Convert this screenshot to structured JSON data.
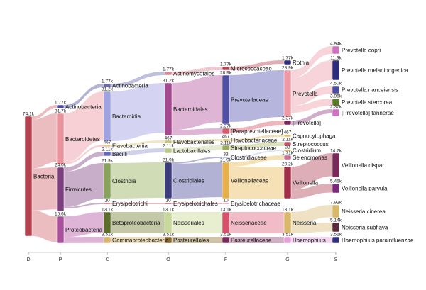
{
  "chart_data": {
    "type": "sankey",
    "levels": [
      "D",
      "P",
      "C",
      "O",
      "F",
      "G",
      "S"
    ],
    "nodes": [
      {
        "id": "bacteria",
        "label": "Bacteria",
        "value": "74.1k",
        "level": 0,
        "color": "#b5414e"
      },
      {
        "id": "actinobacteria_p",
        "label": "Actinobacteria",
        "value": "1.77k",
        "level": 1,
        "color": "#4a4a9a"
      },
      {
        "id": "bacteroidetes",
        "label": "Bacteroidetes",
        "value": "31.7k",
        "level": 1,
        "color": "#e8939b"
      },
      {
        "id": "firmicutes",
        "label": "Firmicutes",
        "value": "24.0k",
        "level": 1,
        "color": "#7b3f7e"
      },
      {
        "id": "proteobacteria",
        "label": "Proteobacteria",
        "value": "16.6k",
        "level": 1,
        "color": "#a8509a"
      },
      {
        "id": "actinobacteria_c",
        "label": "Actinobacteria",
        "value": "1.77k",
        "level": 2,
        "color": "#6a6aa8"
      },
      {
        "id": "bacteroidia",
        "label": "Bacteroidia",
        "value": "31.2k",
        "level": 2,
        "color": "#9fa3e0"
      },
      {
        "id": "flavobacteriia",
        "label": "Flavobacteriia",
        "value": "467",
        "level": 2,
        "color": "#e6c98a"
      },
      {
        "id": "bacilli",
        "label": "Bacilli",
        "value": "2.11k",
        "level": 2,
        "color": "#6468b8"
      },
      {
        "id": "clostridia",
        "label": "Clostridia",
        "value": "21.9k",
        "level": 2,
        "color": "#8aa35c"
      },
      {
        "id": "erysipelotrichi",
        "label": "Erysipelotrichi",
        "value": "10",
        "level": 2,
        "color": "#c96a7a"
      },
      {
        "id": "betaproteobacteria",
        "label": "Betaproteobacteria",
        "value": "13.1k",
        "level": 2,
        "color": "#5d6e2c"
      },
      {
        "id": "gammaproteobacteria",
        "label": "Gammaproteobacteria",
        "value": "3.51k",
        "level": 2,
        "color": "#d8b56c"
      },
      {
        "id": "actinomycetales",
        "label": "Actinomycetales",
        "value": "1.77k",
        "level": 3,
        "color": "#d58a94"
      },
      {
        "id": "bacteroidales",
        "label": "Bacteroidales",
        "value": "31.2k",
        "level": 3,
        "color": "#a4488f"
      },
      {
        "id": "flavobacteriales",
        "label": "Flavobacteriales",
        "value": "467",
        "level": 3,
        "color": "#c8c070"
      },
      {
        "id": "lactobacillales",
        "label": "Lactobacillales",
        "value": "2.11k",
        "level": 3,
        "color": "#b8c886"
      },
      {
        "id": "clostridiales",
        "label": "Clostridiales",
        "value": "21.9k",
        "level": 3,
        "color": "#3d3d7d"
      },
      {
        "id": "erysipelotrichales",
        "label": "Erysipelotrichales",
        "value": "10",
        "level": 3,
        "color": "#b05c6a"
      },
      {
        "id": "neisseriales",
        "label": "Neisseriales",
        "value": "13.1k",
        "level": 3,
        "color": "#c7d89a"
      },
      {
        "id": "pasteurellales",
        "label": "Pasteurellales",
        "value": "3.51k",
        "level": 3,
        "color": "#8a6a2a"
      },
      {
        "id": "micrococcaceae",
        "label": "Micrococcaceae",
        "value": "1.77k",
        "level": 4,
        "color": "#b5414e"
      },
      {
        "id": "prevotellaceae",
        "label": "Prevotellaceae",
        "value": "28.9k",
        "level": 4,
        "color": "#4f4fa3"
      },
      {
        "id": "paraprevotellaceae",
        "label": "[Paraprevotellaceae]",
        "value": "2.37k",
        "level": 4,
        "color": "#d55a6a"
      },
      {
        "id": "flavobacteriaceae",
        "label": "Flavobacteriaceae",
        "value": "467",
        "level": 4,
        "color": "#d4b86a"
      },
      {
        "id": "streptococcaceae",
        "label": "Streptococcaceae",
        "value": "2.11k",
        "level": 4,
        "color": "#9aaa5a"
      },
      {
        "id": "clostridiaceae",
        "label": "Clostridiaceae",
        "value": "33",
        "level": 4,
        "color": "#b0b8e0"
      },
      {
        "id": "veillonellaceae",
        "label": "Veillonellaceae",
        "value": "21.9k",
        "level": 4,
        "color": "#e8b04a"
      },
      {
        "id": "erysipelotrichaceae",
        "label": "Erysipelotrichaceae",
        "value": "10",
        "level": 4,
        "color": "#d8a0a8"
      },
      {
        "id": "neisseriaceae",
        "label": "Neisseriaceae",
        "value": "13.1k",
        "level": 4,
        "color": "#d9506a"
      },
      {
        "id": "pasteurellaceae",
        "label": "Pasteurellaceae",
        "value": "3.51k",
        "level": 4,
        "color": "#7a2a5a"
      },
      {
        "id": "rothia",
        "label": "Rothia",
        "value": "1.77k",
        "level": 5,
        "color": "#2e2e7a"
      },
      {
        "id": "prevotella",
        "label": "Prevotella",
        "value": "28.9k",
        "level": 5,
        "color": "#ee9aa6"
      },
      {
        "id": "prevotella_br",
        "label": "[Prevotella]",
        "value": "2.37k",
        "level": 5,
        "color": "#7a2a5a"
      },
      {
        "id": "capnocytophaga",
        "label": "Capnocytophaga",
        "value": "467",
        "level": 5,
        "color": "#e0c060"
      },
      {
        "id": "streptococcus",
        "label": "Streptococcus",
        "value": "2.11k",
        "level": 5,
        "color": "#c05a70"
      },
      {
        "id": "clostridium",
        "label": "Clostridium",
        "value": "33",
        "level": 5,
        "color": "#c8a030"
      },
      {
        "id": "selenomonas",
        "label": "Selenomonas",
        "value": "1.71k",
        "level": 5,
        "color": "#cc6e98"
      },
      {
        "id": "veillonella",
        "label": "Veillonella",
        "value": "20.2k",
        "level": 5,
        "color": "#a03048"
      },
      {
        "id": "neisseria",
        "label": "Neisseria",
        "value": "13.1k",
        "level": 5,
        "color": "#d8b86a"
      },
      {
        "id": "haemophilus",
        "label": "Haemophilus",
        "value": "3.51k",
        "level": 5,
        "color": "#e6a0d8"
      },
      {
        "id": "prevotella_copri",
        "label": "Prevotella copri",
        "value": "4.94k",
        "level": 6,
        "color": "#d070c0"
      },
      {
        "id": "prevotella_melaninogenica",
        "label": "Prevotella melaninogenica",
        "value": "11.9k",
        "level": 6,
        "color": "#2e2e7a"
      },
      {
        "id": "prevotella_nanceiensis",
        "label": "Prevotella nanceiensis",
        "value": "4.50k",
        "level": 6,
        "color": "#4a4aa0"
      },
      {
        "id": "prevotella_stercorea",
        "label": "Prevotella stercorea",
        "value": "3.96k",
        "level": 6,
        "color": "#5a7a2a"
      },
      {
        "id": "prevotella_tannerae",
        "label": "[Prevotella] tannerae",
        "value": "2.37k",
        "level": 6,
        "color": "#d070c0"
      },
      {
        "id": "veillonella_dispar",
        "label": "Veillonella dispar",
        "value": "14.7k",
        "level": 6,
        "color": "#7a2a5a"
      },
      {
        "id": "veillonella_parvula",
        "label": "Veillonella parvula",
        "value": "5.46k",
        "level": 6,
        "color": "#7a2a7a"
      },
      {
        "id": "neisseria_cinerea",
        "label": "Neisseria cinerea",
        "value": "7.92k",
        "level": 6,
        "color": "#d8b86a"
      },
      {
        "id": "neisseria_subflava",
        "label": "Neisseria subflava",
        "value": "5.14k",
        "level": 6,
        "color": "#5a2a3a"
      },
      {
        "id": "haemophilus_parainfluenzae",
        "label": "Haemophilus parainfluenzae",
        "value": "3.51k",
        "level": 6,
        "color": "#2e2e7a"
      }
    ],
    "links": [
      {
        "source": "bacteria",
        "target": "actinobacteria_p",
        "color": "#e7b0b5"
      },
      {
        "source": "bacteria",
        "target": "bacteroidetes",
        "color": "#e7b0b5"
      },
      {
        "source": "bacteria",
        "target": "firmicutes",
        "color": "#e7b0b5"
      },
      {
        "source": "bacteria",
        "target": "proteobacteria",
        "color": "#e7b0b5"
      },
      {
        "source": "actinobacteria_p",
        "target": "actinobacteria_c",
        "color": "#a4a4cc"
      },
      {
        "source": "bacteroidetes",
        "target": "bacteroidia",
        "color": "#f4c8cc"
      },
      {
        "source": "bacteroidetes",
        "target": "flavobacteriia",
        "color": "#f4c8cc"
      },
      {
        "source": "firmicutes",
        "target": "bacilli",
        "color": "#c0a0c0"
      },
      {
        "source": "firmicutes",
        "target": "clostridia",
        "color": "#c0a0c0"
      },
      {
        "source": "firmicutes",
        "target": "erysipelotrichi",
        "color": "#c0a0c0"
      },
      {
        "source": "proteobacteria",
        "target": "betaproteobacteria",
        "color": "#d8a8d0"
      },
      {
        "source": "proteobacteria",
        "target": "gammaproteobacteria",
        "color": "#d8a8d0"
      },
      {
        "source": "actinobacteria_c",
        "target": "actinomycetales",
        "color": "#b4b4d8"
      },
      {
        "source": "bacteroidia",
        "target": "bacteroidales",
        "color": "#ccccf0"
      },
      {
        "source": "flavobacteriia",
        "target": "flavobacteriales",
        "color": "#f0e0b8"
      },
      {
        "source": "bacilli",
        "target": "lactobacillales",
        "color": "#c8c8e8"
      },
      {
        "source": "clostridia",
        "target": "clostridiales",
        "color": "#c8d6a8"
      },
      {
        "source": "erysipelotrichi",
        "target": "erysipelotrichales",
        "color": "#e0b0b8"
      },
      {
        "source": "betaproteobacteria",
        "target": "neisseriales",
        "color": "#b8c098"
      },
      {
        "source": "gammaproteobacteria",
        "target": "pasteurellales",
        "color": "#ecd8b0"
      },
      {
        "source": "actinomycetales",
        "target": "micrococcaceae",
        "color": "#ecc0c6"
      },
      {
        "source": "bacteroidales",
        "target": "prevotellaceae",
        "color": "#d8a8cc"
      },
      {
        "source": "bacteroidales",
        "target": "paraprevotellaceae",
        "color": "#d8a8cc"
      },
      {
        "source": "flavobacteriales",
        "target": "flavobacteriaceae",
        "color": "#e8e4b8"
      },
      {
        "source": "lactobacillales",
        "target": "streptococcaceae",
        "color": "#e0e8c8"
      },
      {
        "source": "clostridiales",
        "target": "clostridiaceae",
        "color": "#a4a4cc"
      },
      {
        "source": "clostridiales",
        "target": "veillonellaceae",
        "color": "#a4a4cc"
      },
      {
        "source": "erysipelotrichales",
        "target": "erysipelotrichaceae",
        "color": "#dca8b0"
      },
      {
        "source": "neisseriales",
        "target": "neisseriaceae",
        "color": "#e4ecc8"
      },
      {
        "source": "pasteurellales",
        "target": "pasteurellaceae",
        "color": "#c8b898"
      },
      {
        "source": "micrococcaceae",
        "target": "rothia",
        "color": "#dca0a8"
      },
      {
        "source": "prevotellaceae",
        "target": "prevotella",
        "color": "#a8a8d8"
      },
      {
        "source": "paraprevotellaceae",
        "target": "prevotella_br",
        "color": "#eca8b0"
      },
      {
        "source": "flavobacteriaceae",
        "target": "capnocytophaga",
        "color": "#ecdcb0"
      },
      {
        "source": "streptococcaceae",
        "target": "streptococcus",
        "color": "#d4dcb0"
      },
      {
        "source": "clostridiaceae",
        "target": "clostridium",
        "color": "#d8dcf0"
      },
      {
        "source": "veillonellaceae",
        "target": "selenomonas",
        "color": "#f4dcaa"
      },
      {
        "source": "veillonellaceae",
        "target": "veillonella",
        "color": "#f4dcaa"
      },
      {
        "source": "neisseriaceae",
        "target": "neisseria",
        "color": "#eeb0bc"
      },
      {
        "source": "pasteurellaceae",
        "target": "haemophilus",
        "color": "#c8a0b8"
      },
      {
        "source": "prevotella",
        "target": "prevotella_copri",
        "color": "#f4ccd2"
      },
      {
        "source": "prevotella",
        "target": "prevotella_melaninogenica",
        "color": "#f4ccd2"
      },
      {
        "source": "prevotella",
        "target": "prevotella_nanceiensis",
        "color": "#f4ccd2"
      },
      {
        "source": "prevotella",
        "target": "prevotella_stercorea",
        "color": "#f4ccd2"
      },
      {
        "source": "prevotella_br",
        "target": "prevotella_tannerae",
        "color": "#c8a0c0"
      },
      {
        "source": "veillonella",
        "target": "veillonella_dispar",
        "color": "#d8a0aa"
      },
      {
        "source": "veillonella",
        "target": "veillonella_parvula",
        "color": "#d8a0aa"
      },
      {
        "source": "neisseria",
        "target": "neisseria_cinerea",
        "color": "#ecdcb8"
      },
      {
        "source": "neisseria",
        "target": "neisseria_subflava",
        "color": "#ecdcb8"
      },
      {
        "source": "haemophilus",
        "target": "haemophilus_parainfluenzae",
        "color": "#f0d0ec"
      }
    ]
  }
}
